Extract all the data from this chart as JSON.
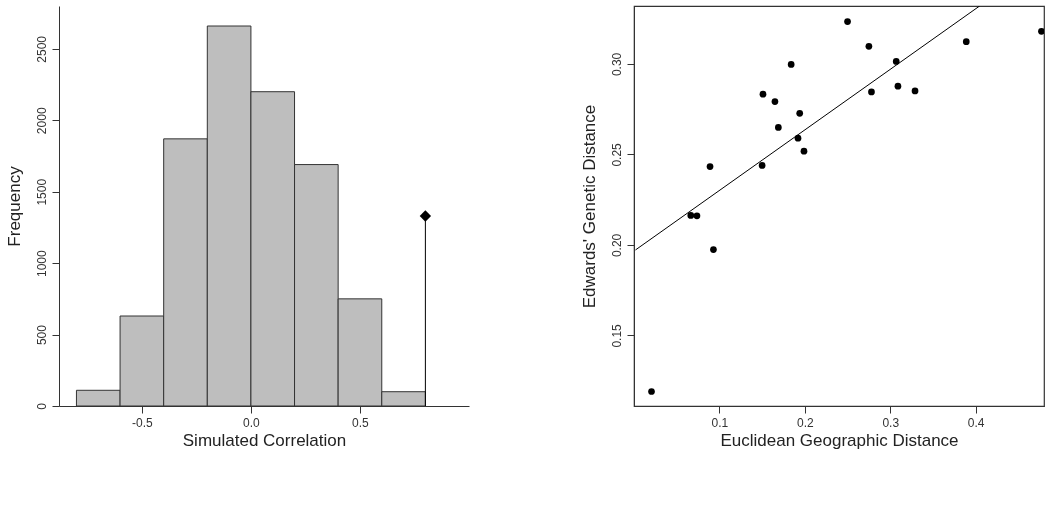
{
  "chart_data": [
    {
      "type": "histogram",
      "xlabel": "Simulated Correlation",
      "ylabel": "Frequency",
      "bins": [
        -0.8,
        -0.6,
        -0.4,
        -0.2,
        0.0,
        0.2,
        0.4,
        0.6,
        0.8
      ],
      "values": [
        110,
        630,
        1870,
        2660,
        2200,
        1690,
        750,
        100
      ],
      "color": "#bebebe",
      "series": [
        {
          "type": "lollipop",
          "x": [
            0.8
          ],
          "values": [
            1330
          ],
          "color": "#000000",
          "marker": "diamond"
        }
      ],
      "xlim": [
        -0.88,
        1.0
      ],
      "xticks": [
        -0.5,
        {
          "value": 0,
          "label": "0.0"
        },
        0.5
      ],
      "ylim": [
        0,
        2800
      ],
      "yticks": [
        0,
        500,
        1000,
        1500,
        2000,
        2500
      ],
      "grid": false
    },
    {
      "type": "scatter",
      "xlabel": "Euclidean Geographic Distance",
      "ylabel": "Edwards' Genetic Distance",
      "series": [
        {
          "type": "scatter",
          "color": "#000000",
          "x": [
            0.25,
            0.477,
            0.389,
            0.275,
            0.184,
            0.307,
            0.151,
            0.165,
            0.278,
            0.309,
            0.329,
            0.194,
            0.169,
            0.192,
            0.199,
            0.15,
            0.089,
            0.0665,
            0.0737,
            0.093,
            0.0205
          ],
          "values": [
            0.3234,
            0.318,
            0.3123,
            0.3097,
            0.2997,
            0.3014,
            0.2833,
            0.2792,
            0.2845,
            0.2877,
            0.2851,
            0.2727,
            0.2649,
            0.259,
            0.2518,
            0.2439,
            0.2433,
            0.2163,
            0.2161,
            0.1974,
            0.119
          ]
        },
        {
          "type": "line",
          "color": "#000000",
          "x": [
            0.0017,
            0.4046
          ],
          "values": [
            0.1972,
            0.332
          ]
        }
      ],
      "xlim": [
        0.0,
        0.48
      ],
      "xticks": [
        0.1,
        0.2,
        0.3,
        0.4
      ],
      "ylim": [
        0.111,
        0.332
      ],
      "yticks": [
        0.15,
        {
          "value": 0.2,
          "label": "0.20"
        },
        0.25,
        {
          "value": 0.3,
          "label": "0.30"
        }
      ],
      "grid": false
    }
  ]
}
